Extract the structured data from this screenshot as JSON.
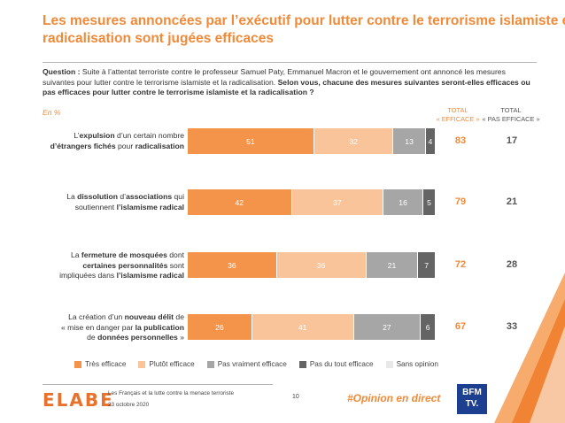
{
  "title": {
    "line1": "Les mesures annoncées par l’exécutif pour lutter contre le terrorisme islamiste et la",
    "line2": "radicalisation sont jugées efficaces"
  },
  "question": {
    "label": "Question :",
    "text": " Suite à l’attentat terroriste contre le professeur Samuel Paty, Emmanuel Macron et le gouvernement ont annoncé les mesures suivantes pour lutter contre le terrorisme islamiste et la radicalisation. ",
    "bold": "Selon vous, chacune des mesures suivantes seront-elles efficaces ou pas efficaces pour lutter contre le terrorisme islamiste et la radicalisation ?"
  },
  "unit": "En %",
  "columns": {
    "total_eff_line1": "TOTAL",
    "total_eff_line2": "« EFFICACE »",
    "total_neff_line1": "TOTAL",
    "total_neff_line2": "« PAS EFFICACE »"
  },
  "rows": [
    {
      "label_parts": [
        {
          "t": "L’",
          "b": false
        },
        {
          "t": "expulsion",
          "b": true
        },
        {
          "t": " d’un certain nombre",
          "b": false
        },
        {
          "t": "\n",
          "b": false
        },
        {
          "t": "d’étrangers fichés",
          "b": true
        },
        {
          "t": " pour ",
          "b": false
        },
        {
          "t": "radicalisation",
          "b": true
        }
      ]
    },
    {
      "label_parts": [
        {
          "t": "La ",
          "b": false
        },
        {
          "t": "dissolution",
          "b": true
        },
        {
          "t": " d’",
          "b": false
        },
        {
          "t": "associations",
          "b": true
        },
        {
          "t": " qui",
          "b": false
        },
        {
          "t": "\n",
          "b": false
        },
        {
          "t": "soutiennent ",
          "b": false
        },
        {
          "t": "l’islamisme radical",
          "b": true
        }
      ]
    },
    {
      "label_parts": [
        {
          "t": "La ",
          "b": false
        },
        {
          "t": "fermeture de mosquées",
          "b": true
        },
        {
          "t": " dont",
          "b": false
        },
        {
          "t": "\n",
          "b": false
        },
        {
          "t": "certaines personnalités",
          "b": true
        },
        {
          "t": " sont",
          "b": false
        },
        {
          "t": "\n",
          "b": false
        },
        {
          "t": "impliquées dans ",
          "b": false
        },
        {
          "t": "l’islamisme radical",
          "b": true
        }
      ]
    },
    {
      "label_parts": [
        {
          "t": "La création d’un ",
          "b": false
        },
        {
          "t": "nouveau délit",
          "b": true
        },
        {
          "t": " de",
          "b": false
        },
        {
          "t": "\n",
          "b": false
        },
        {
          "t": "« mise en danger par ",
          "b": false
        },
        {
          "t": "la publication",
          "b": true
        },
        {
          "t": "\n",
          "b": false
        },
        {
          "t": "de ",
          "b": false
        },
        {
          "t": "données personnelles",
          "b": true
        },
        {
          "t": " »",
          "b": false
        }
      ]
    }
  ],
  "chart_data": {
    "type": "bar",
    "orientation": "horizontal",
    "stacked": true,
    "categories": [
      "L’expulsion d’un certain nombre d’étrangers fichés pour radicalisation",
      "La dissolution d’associations qui soutiennent l’islamisme radical",
      "La fermeture de mosquées dont certaines personnalités sont impliquées dans l’islamisme radical",
      "La création d’un nouveau délit de « mise en danger par la publication de données personnelles »"
    ],
    "series": [
      {
        "name": "Très efficace",
        "values": [
          51,
          42,
          36,
          26
        ],
        "color": "#f4944a"
      },
      {
        "name": "Plutôt efficace",
        "values": [
          32,
          37,
          36,
          41
        ],
        "color": "#fac49a"
      },
      {
        "name": "Pas vraiment efficace",
        "values": [
          13,
          16,
          21,
          27
        ],
        "color": "#a6a6a6"
      },
      {
        "name": "Pas du tout efficace",
        "values": [
          4,
          5,
          7,
          6
        ],
        "color": "#646464"
      },
      {
        "name": "Sans opinion",
        "values": [
          0,
          0,
          0,
          0
        ],
        "color": "#e8e8e8"
      }
    ],
    "totals_efficace": [
      83,
      79,
      72,
      67
    ],
    "totals_pas_efficace": [
      17,
      21,
      28,
      33
    ],
    "legend_position": "bottom",
    "grid": false
  },
  "footer": {
    "logo": "ELABE",
    "subtitle": "Les Français et la lutte contre la menace terroriste",
    "date": "23 octobre 2020",
    "page": "10",
    "hashtag": "#Opinion en direct",
    "partner_line1": "BFM",
    "partner_line2": "TV."
  },
  "colors": {
    "accent": "#f08a38"
  }
}
